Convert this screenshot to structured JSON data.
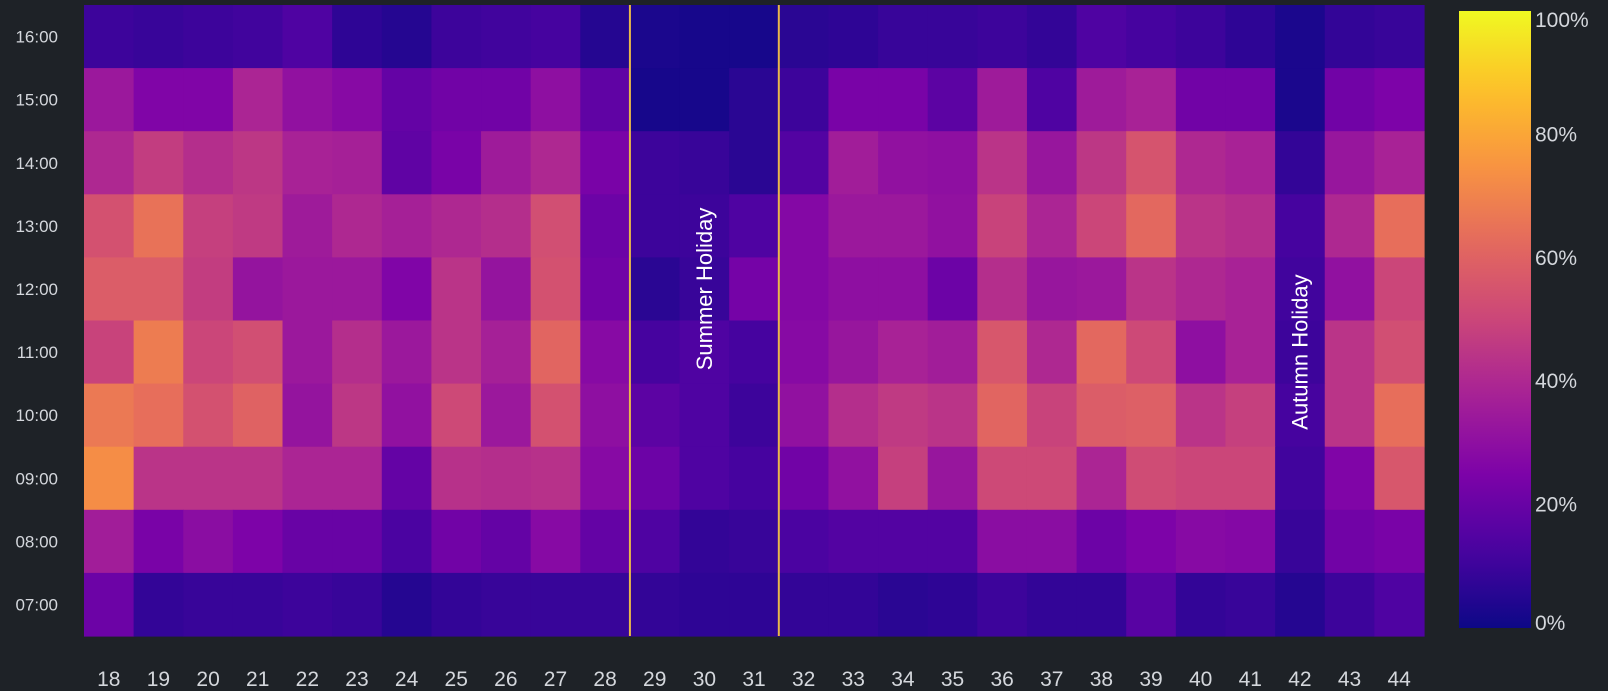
{
  "chart_data": {
    "type": "heatmap",
    "title": "",
    "xlabel": "",
    "ylabel": "",
    "x": [
      "18",
      "19",
      "20",
      "21",
      "22",
      "23",
      "24",
      "25",
      "26",
      "27",
      "28",
      "29",
      "30",
      "31",
      "32",
      "33",
      "34",
      "35",
      "36",
      "37",
      "38",
      "39",
      "40",
      "41",
      "42",
      "43",
      "44"
    ],
    "y": [
      "16:00",
      "15:00",
      "14:00",
      "13:00",
      "12:00",
      "11:00",
      "10:00",
      "09:00",
      "08:00",
      "07:00"
    ],
    "values": [
      [
        10,
        9,
        10,
        11,
        14,
        7,
        5,
        10,
        11,
        12,
        5,
        3,
        2,
        2,
        6,
        7,
        9,
        9,
        10,
        8,
        14,
        12,
        10,
        7,
        3,
        8,
        9
      ],
      [
        34,
        26,
        26,
        39,
        31,
        28,
        19,
        22,
        22,
        30,
        18,
        2,
        2,
        6,
        10,
        24,
        24,
        17,
        35,
        14,
        35,
        38,
        22,
        22,
        3,
        22,
        25
      ],
      [
        40,
        47,
        42,
        45,
        38,
        37,
        18,
        24,
        35,
        40,
        24,
        10,
        9,
        6,
        15,
        36,
        31,
        30,
        44,
        33,
        45,
        55,
        40,
        38,
        8,
        33,
        38
      ],
      [
        54,
        65,
        48,
        46,
        35,
        40,
        37,
        40,
        42,
        53,
        21,
        10,
        10,
        14,
        27,
        34,
        34,
        31,
        49,
        39,
        50,
        62,
        44,
        42,
        12,
        40,
        64
      ],
      [
        58,
        58,
        47,
        32,
        34,
        34,
        26,
        44,
        32,
        54,
        22,
        6,
        9,
        23,
        27,
        30,
        30,
        21,
        42,
        33,
        34,
        44,
        40,
        38,
        11,
        31,
        50
      ],
      [
        49,
        68,
        50,
        53,
        34,
        42,
        34,
        44,
        37,
        61,
        28,
        12,
        14,
        12,
        28,
        33,
        38,
        36,
        56,
        40,
        62,
        51,
        30,
        38,
        10,
        44,
        53
      ],
      [
        67,
        64,
        54,
        60,
        32,
        45,
        31,
        51,
        34,
        54,
        30,
        17,
        14,
        10,
        31,
        42,
        46,
        44,
        61,
        49,
        58,
        59,
        44,
        48,
        12,
        44,
        64
      ],
      [
        73,
        44,
        44,
        44,
        39,
        39,
        19,
        43,
        42,
        43,
        28,
        21,
        14,
        12,
        22,
        31,
        48,
        33,
        51,
        51,
        39,
        52,
        50,
        50,
        11,
        26,
        56
      ],
      [
        36,
        24,
        29,
        25,
        20,
        20,
        13,
        22,
        19,
        28,
        19,
        14,
        8,
        9,
        13,
        15,
        15,
        15,
        29,
        29,
        21,
        25,
        28,
        27,
        9,
        22,
        24
      ],
      [
        21,
        8,
        9,
        9,
        10,
        9,
        5,
        8,
        9,
        9,
        9,
        8,
        7,
        7,
        8,
        8,
        6,
        7,
        10,
        8,
        8,
        16,
        8,
        9,
        5,
        10,
        14
      ]
    ],
    "value_range": [
      0,
      100
    ],
    "colormap": "plasma",
    "colorbar": {
      "ticks": [
        "0%",
        "20%",
        "40%",
        "60%",
        "80%",
        "100%"
      ]
    },
    "annotations": [
      {
        "text": "Summer Holiday",
        "x": "30",
        "y": "12:00",
        "rotation": -90
      },
      {
        "text": "Autumn Holiday",
        "x": "42",
        "y": "11:00",
        "rotation": -90
      }
    ],
    "vertical_lines": [
      {
        "between": [
          "28",
          "29"
        ],
        "color": "#e8b84a"
      },
      {
        "between": [
          "31",
          "32"
        ],
        "color": "#e8b84a"
      }
    ],
    "grid": false,
    "legend": "colorbar-right"
  }
}
